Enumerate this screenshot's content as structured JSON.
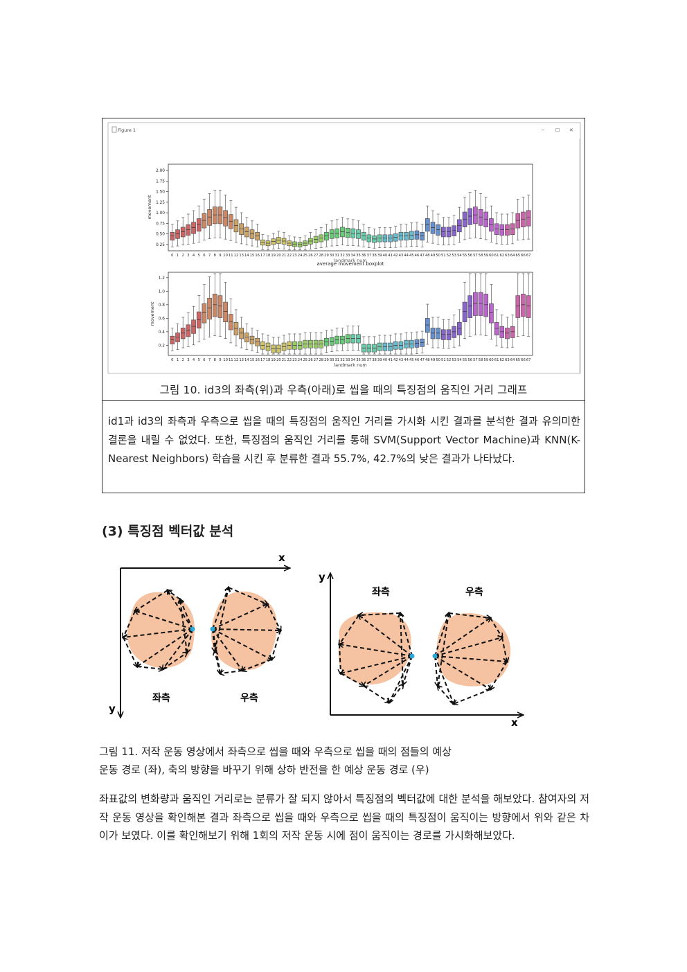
{
  "figure10": {
    "window_title": "Figure 1",
    "window_controls": [
      "–",
      "☐",
      "✕"
    ],
    "caption": "그림 10. id3의 좌측(위)과 우측(아래)로 씹을 때의 특징점의 움직인 거리 그래프",
    "description": "id1과 id3의 좌측과 우측으로 씹을 때의 특징점의 움직인 거리를 가시화 시킨 결과를 분석한 결과 유의미한 결론을 내릴 수 없었다. 또한, 특징점의 움직인 거리를 통해 SVM(Support Vector Machine)과 KNN(K-Nearest Neighbors) 학습을 시킨 후 분류한 결과 55.7%, 42.7%의 낮은 결과가 나타났다."
  },
  "chart_data": [
    {
      "type": "boxplot",
      "title": "average movement boxplot",
      "xlabel": "landmark num",
      "ylabel": "movement",
      "yticks": [
        "0.25",
        "0.50",
        "0.75",
        "1.00",
        "1.25",
        "1.50",
        "1.75",
        "2.00"
      ],
      "ylim": [
        0.1,
        2.15
      ],
      "categories": [
        "0",
        "1",
        "2",
        "3",
        "4",
        "5",
        "6",
        "7",
        "8",
        "9",
        "10",
        "11",
        "12",
        "13",
        "14",
        "15",
        "16",
        "17",
        "18",
        "19",
        "20",
        "21",
        "22",
        "23",
        "24",
        "25",
        "26",
        "27",
        "28",
        "29",
        "30",
        "31",
        "32",
        "33",
        "34",
        "35",
        "36",
        "37",
        "38",
        "39",
        "40",
        "41",
        "42",
        "43",
        "44",
        "45",
        "46",
        "47",
        "48",
        "49",
        "50",
        "51",
        "52",
        "53",
        "54",
        "55",
        "56",
        "57",
        "58",
        "59",
        "60",
        "61",
        "62",
        "63",
        "64",
        "65",
        "66",
        "67"
      ],
      "medians": [
        0.45,
        0.5,
        0.55,
        0.6,
        0.65,
        0.72,
        0.82,
        0.9,
        0.95,
        0.95,
        0.88,
        0.8,
        0.7,
        0.62,
        0.55,
        0.5,
        0.45,
        0.3,
        0.28,
        0.32,
        0.35,
        0.33,
        0.28,
        0.26,
        0.25,
        0.28,
        0.33,
        0.37,
        0.4,
        0.45,
        0.5,
        0.52,
        0.55,
        0.53,
        0.52,
        0.5,
        0.45,
        0.4,
        0.38,
        0.4,
        0.4,
        0.4,
        0.42,
        0.45,
        0.45,
        0.47,
        0.48,
        0.45,
        0.72,
        0.65,
        0.6,
        0.55,
        0.55,
        0.58,
        0.7,
        0.85,
        0.92,
        0.95,
        0.9,
        0.85,
        0.72,
        0.62,
        0.6,
        0.6,
        0.62,
        0.82,
        0.85,
        0.88
      ]
    },
    {
      "type": "boxplot",
      "title": "",
      "xlabel": "landmark num",
      "ylabel": "movement",
      "yticks": [
        "0.2",
        "0.4",
        "0.6",
        "0.8",
        "1.0",
        "1.2"
      ],
      "ylim": [
        0.05,
        1.28
      ],
      "categories": [
        "0",
        "1",
        "2",
        "3",
        "4",
        "5",
        "6",
        "7",
        "8",
        "9",
        "10",
        "11",
        "12",
        "13",
        "14",
        "15",
        "16",
        "17",
        "18",
        "19",
        "20",
        "21",
        "22",
        "23",
        "24",
        "25",
        "26",
        "27",
        "28",
        "29",
        "30",
        "31",
        "32",
        "33",
        "34",
        "35",
        "36",
        "37",
        "38",
        "39",
        "40",
        "41",
        "42",
        "43",
        "44",
        "45",
        "46",
        "47",
        "48",
        "49",
        "50",
        "51",
        "52",
        "53",
        "54",
        "55",
        "56",
        "57",
        "58",
        "59",
        "60",
        "61",
        "62",
        "63",
        "64",
        "65",
        "66",
        "67"
      ],
      "medians": [
        0.28,
        0.32,
        0.38,
        0.42,
        0.48,
        0.58,
        0.68,
        0.75,
        0.8,
        0.78,
        0.7,
        0.55,
        0.45,
        0.38,
        0.32,
        0.28,
        0.25,
        0.2,
        0.18,
        0.15,
        0.15,
        0.18,
        0.2,
        0.2,
        0.2,
        0.22,
        0.22,
        0.22,
        0.22,
        0.25,
        0.26,
        0.28,
        0.28,
        0.3,
        0.3,
        0.3,
        0.16,
        0.16,
        0.16,
        0.18,
        0.18,
        0.18,
        0.2,
        0.2,
        0.22,
        0.22,
        0.23,
        0.24,
        0.5,
        0.38,
        0.38,
        0.36,
        0.36,
        0.4,
        0.45,
        0.7,
        0.78,
        0.82,
        0.82,
        0.8,
        0.68,
        0.45,
        0.4,
        0.38,
        0.4,
        0.78,
        0.8,
        0.78
      ]
    }
  ],
  "section": {
    "title": "(3) 특징점 벡터값 분석"
  },
  "figure11": {
    "left": {
      "x_axis": "x",
      "y_axis": "y",
      "label_left": "좌측",
      "label_right": "우측"
    },
    "right": {
      "x_axis": "x",
      "y_axis": "y",
      "label_left": "좌측",
      "label_right": "우측"
    },
    "caption_line1": "그림 11.  저작 운동 영상에서 좌측으로 씹을 때와 우측으로 씹을 때의 점들의 예상",
    "caption_line2": "운동 경로 (좌), 축의 방향을 바꾸기 위해 상하 반전을 한 예상 운동 경로 (우)"
  },
  "body_paragraph": "좌표값의 변화량과 움직인 거리로는 분류가 잘 되지 않아서 특징점의 벡터값에 대한 분석을 해보았다. 참여자의 저작 운동 영상을 확인해본 결과 좌측으로 씹을 때와 우측으로 씹을 때의 특징점이 움직이는 방향에서 위와 같은 차이가 보였다. 이를 확인해보기 위해 1회의 저작 운동 시에 점이 움직이는 경로를 가시화해보았다."
}
